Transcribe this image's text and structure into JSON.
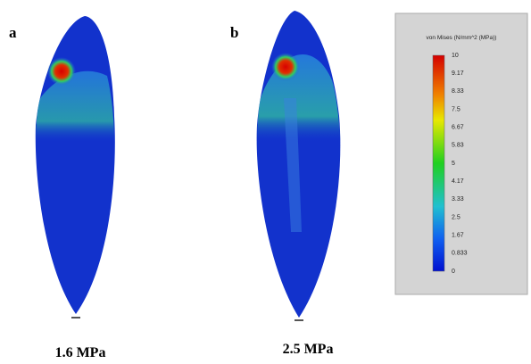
{
  "panels": [
    {
      "label": "a",
      "caption": "1.6 MPa"
    },
    {
      "label": "b",
      "caption": "2.5 MPa"
    }
  ],
  "legend": {
    "title": "von Mises (N/mm^2 (MPa))",
    "ticks": [
      "10",
      "9.17",
      "8.33",
      "7.5",
      "6.67",
      "5.83",
      "5",
      "4.17",
      "3.33",
      "2.5",
      "1.67",
      "0.833",
      "0"
    ]
  }
}
